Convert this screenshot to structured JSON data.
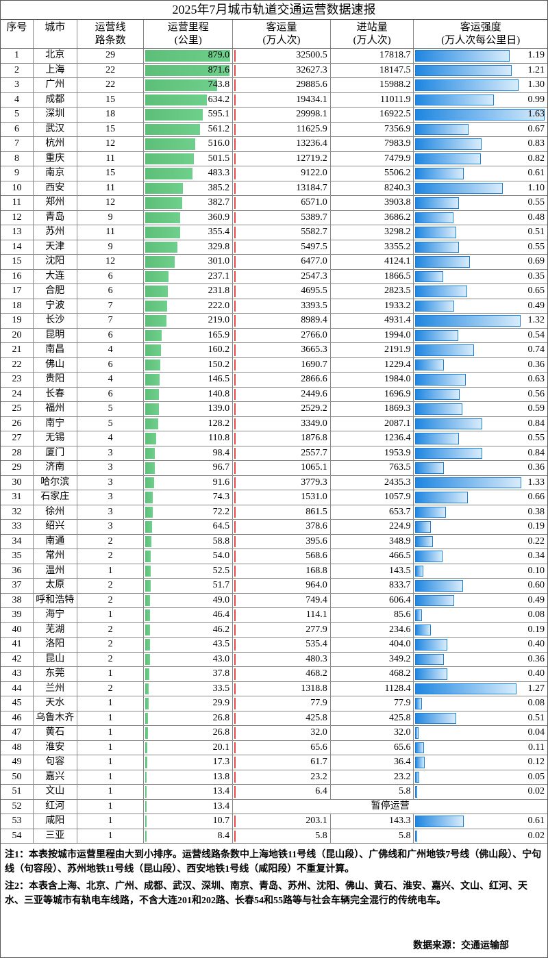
{
  "title": "2025年7月城市轨道交通运营数据速报",
  "header": [
    "序号",
    "城市",
    "运营线\n路条数",
    "运营里程\n(公里)",
    "客运量\n(万人次)",
    "进站量\n(万人次)",
    "客运强度\n(万人次每公里日)"
  ],
  "rows": [
    [
      1,
      "北京",
      29,
      "879.0",
      "32500.5",
      "17818.7",
      "1.19"
    ],
    [
      2,
      "上海",
      22,
      "871.6",
      "32627.3",
      "18147.5",
      "1.21"
    ],
    [
      3,
      "广州",
      22,
      "743.8",
      "29885.6",
      "15988.2",
      "1.30"
    ],
    [
      4,
      "成都",
      15,
      "634.2",
      "19434.1",
      "11011.9",
      "0.99"
    ],
    [
      5,
      "深圳",
      18,
      "595.1",
      "29998.1",
      "16922.5",
      "1.63"
    ],
    [
      6,
      "武汉",
      15,
      "561.2",
      "11625.9",
      "7356.9",
      "0.67"
    ],
    [
      7,
      "杭州",
      12,
      "516.0",
      "13236.4",
      "7983.9",
      "0.83"
    ],
    [
      8,
      "重庆",
      11,
      "501.5",
      "12719.2",
      "7479.9",
      "0.82"
    ],
    [
      9,
      "南京",
      15,
      "483.3",
      "9122.0",
      "5506.2",
      "0.61"
    ],
    [
      10,
      "西安",
      11,
      "385.2",
      "13184.7",
      "8240.3",
      "1.10"
    ],
    [
      11,
      "郑州",
      12,
      "382.7",
      "6571.0",
      "3903.8",
      "0.55"
    ],
    [
      12,
      "青岛",
      9,
      "360.9",
      "5389.7",
      "3686.2",
      "0.48"
    ],
    [
      13,
      "苏州",
      11,
      "355.4",
      "5582.7",
      "3298.2",
      "0.51"
    ],
    [
      14,
      "天津",
      9,
      "329.8",
      "5497.5",
      "3355.2",
      "0.55"
    ],
    [
      15,
      "沈阳",
      12,
      "301.0",
      "6477.0",
      "4124.1",
      "0.69"
    ],
    [
      16,
      "大连",
      6,
      "237.1",
      "2547.3",
      "1866.5",
      "0.35"
    ],
    [
      17,
      "合肥",
      6,
      "231.8",
      "4695.5",
      "2823.5",
      "0.65"
    ],
    [
      18,
      "宁波",
      7,
      "222.0",
      "3393.5",
      "1933.2",
      "0.49"
    ],
    [
      19,
      "长沙",
      7,
      "219.0",
      "8989.4",
      "4931.4",
      "1.32"
    ],
    [
      20,
      "昆明",
      6,
      "165.9",
      "2766.0",
      "1994.0",
      "0.54"
    ],
    [
      21,
      "南昌",
      4,
      "160.2",
      "3665.3",
      "2191.9",
      "0.74"
    ],
    [
      22,
      "佛山",
      6,
      "150.2",
      "1690.7",
      "1229.4",
      "0.36"
    ],
    [
      23,
      "贵阳",
      4,
      "146.5",
      "2866.6",
      "1984.0",
      "0.63"
    ],
    [
      24,
      "长春",
      6,
      "140.8",
      "2449.6",
      "1696.9",
      "0.56"
    ],
    [
      25,
      "福州",
      5,
      "139.0",
      "2529.2",
      "1869.3",
      "0.59"
    ],
    [
      26,
      "南宁",
      5,
      "128.2",
      "3349.0",
      "2087.1",
      "0.84"
    ],
    [
      27,
      "无锡",
      4,
      "110.8",
      "1876.8",
      "1236.4",
      "0.55"
    ],
    [
      28,
      "厦门",
      3,
      "98.4",
      "2557.7",
      "1953.9",
      "0.84"
    ],
    [
      29,
      "济南",
      3,
      "96.7",
      "1065.1",
      "763.5",
      "0.36"
    ],
    [
      30,
      "哈尔滨",
      3,
      "91.6",
      "3779.3",
      "2435.3",
      "1.33"
    ],
    [
      31,
      "石家庄",
      3,
      "74.3",
      "1531.0",
      "1057.9",
      "0.66"
    ],
    [
      32,
      "徐州",
      3,
      "72.2",
      "861.5",
      "653.7",
      "0.38"
    ],
    [
      33,
      "绍兴",
      3,
      "64.5",
      "378.6",
      "224.9",
      "0.19"
    ],
    [
      34,
      "南通",
      2,
      "58.8",
      "395.6",
      "348.9",
      "0.22"
    ],
    [
      35,
      "常州",
      2,
      "54.0",
      "568.6",
      "466.5",
      "0.34"
    ],
    [
      36,
      "温州",
      1,
      "52.5",
      "168.8",
      "143.5",
      "0.10"
    ],
    [
      37,
      "太原",
      2,
      "51.7",
      "964.0",
      "833.7",
      "0.60"
    ],
    [
      38,
      "呼和浩特",
      2,
      "49.0",
      "749.4",
      "606.4",
      "0.49"
    ],
    [
      39,
      "海宁",
      1,
      "46.4",
      "114.1",
      "85.6",
      "0.08"
    ],
    [
      40,
      "芜湖",
      2,
      "46.2",
      "277.9",
      "234.6",
      "0.19"
    ],
    [
      41,
      "洛阳",
      2,
      "43.5",
      "535.4",
      "404.0",
      "0.40"
    ],
    [
      42,
      "昆山",
      2,
      "43.0",
      "480.3",
      "349.2",
      "0.36"
    ],
    [
      43,
      "东莞",
      1,
      "37.8",
      "468.2",
      "468.2",
      "0.40"
    ],
    [
      44,
      "兰州",
      2,
      "33.5",
      "1318.8",
      "1128.4",
      "1.27"
    ],
    [
      45,
      "天水",
      1,
      "29.9",
      "77.9",
      "77.9",
      "0.08"
    ],
    [
      46,
      "乌鲁木齐",
      1,
      "26.8",
      "425.8",
      "425.8",
      "0.51"
    ],
    [
      47,
      "黄石",
      1,
      "26.8",
      "32.0",
      "32.0",
      "0.04"
    ],
    [
      48,
      "淮安",
      1,
      "20.1",
      "65.6",
      "65.6",
      "0.11"
    ],
    [
      49,
      "句容",
      1,
      "17.3",
      "61.7",
      "36.4",
      "0.12"
    ],
    [
      50,
      "嘉兴",
      1,
      "13.8",
      "23.2",
      "23.2",
      "0.05"
    ],
    [
      51,
      "文山",
      1,
      "13.4",
      "6.4",
      "5.8",
      "0.02"
    ],
    [
      52,
      "红河",
      1,
      "13.4",
      "暂停运营"
    ],
    [
      53,
      "咸阳",
      1,
      "10.7",
      "203.1",
      "143.3",
      "0.61"
    ],
    [
      54,
      "三亚",
      1,
      "8.4",
      "5.8",
      "5.8",
      "0.02"
    ]
  ],
  "notes": [
    "注1：本表按城市运营里程由大到小排序。运营线路条数中上海地铁11号线（昆山段）、广佛线和广州地铁7号线（佛山段）、宁句线（句容段）、苏州地铁11号线（昆山段）、西安地铁1号线（咸阳段）不重复计算。",
    "注2：本表含上海、北京、广州、成都、武汉、深圳、南京、青岛、苏州、沈阳、佛山、黄石、淮安、嘉兴、文山、红河、天水、三亚等城市有轨电车线路，不含大连201和202路、长春54和55路等与社会车辆完全混行的传统电车。"
  ],
  "source": "数据来源：交通运输部"
}
